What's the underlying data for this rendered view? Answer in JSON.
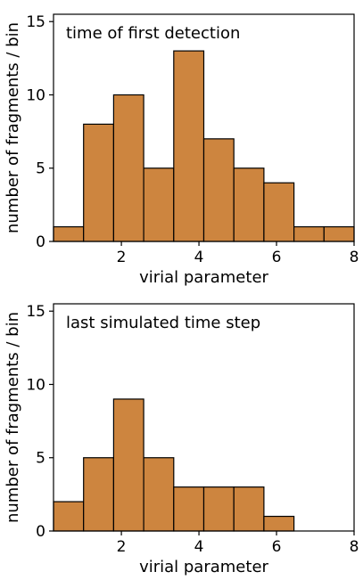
{
  "chart_data": [
    {
      "type": "bar",
      "title": "time of first detection",
      "xlabel": "virial parameter",
      "ylabel": "number of fragments / bin",
      "xlim": [
        0.25,
        8.0
      ],
      "ylim": [
        0,
        15.5
      ],
      "xticks": [
        2,
        4,
        6,
        8
      ],
      "yticks": [
        0,
        5,
        10,
        15
      ],
      "bar_color": "#cd853f",
      "edge_color": "#000000",
      "bins": [
        {
          "x0": 0.25,
          "x1": 1.025,
          "value": 1
        },
        {
          "x0": 1.025,
          "x1": 1.8,
          "value": 8
        },
        {
          "x0": 1.8,
          "x1": 2.575,
          "value": 10
        },
        {
          "x0": 2.575,
          "x1": 3.35,
          "value": 5
        },
        {
          "x0": 3.35,
          "x1": 4.125,
          "value": 13
        },
        {
          "x0": 4.125,
          "x1": 4.9,
          "value": 7
        },
        {
          "x0": 4.9,
          "x1": 5.675,
          "value": 5
        },
        {
          "x0": 5.675,
          "x1": 6.45,
          "value": 4
        },
        {
          "x0": 6.45,
          "x1": 7.225,
          "value": 1
        },
        {
          "x0": 7.225,
          "x1": 8.0,
          "value": 1
        }
      ]
    },
    {
      "type": "bar",
      "title": "last simulated time step",
      "xlabel": "virial parameter",
      "ylabel": "number of fragments / bin",
      "xlim": [
        0.25,
        8.0
      ],
      "ylim": [
        0,
        15.5
      ],
      "xticks": [
        2,
        4,
        6,
        8
      ],
      "yticks": [
        0,
        5,
        10,
        15
      ],
      "bar_color": "#cd853f",
      "edge_color": "#000000",
      "bins": [
        {
          "x0": 0.25,
          "x1": 1.025,
          "value": 2
        },
        {
          "x0": 1.025,
          "x1": 1.8,
          "value": 5
        },
        {
          "x0": 1.8,
          "x1": 2.575,
          "value": 9
        },
        {
          "x0": 2.575,
          "x1": 3.35,
          "value": 5
        },
        {
          "x0": 3.35,
          "x1": 4.125,
          "value": 3
        },
        {
          "x0": 4.125,
          "x1": 4.9,
          "value": 3
        },
        {
          "x0": 4.9,
          "x1": 5.675,
          "value": 3
        },
        {
          "x0": 5.675,
          "x1": 6.45,
          "value": 1
        }
      ]
    }
  ]
}
